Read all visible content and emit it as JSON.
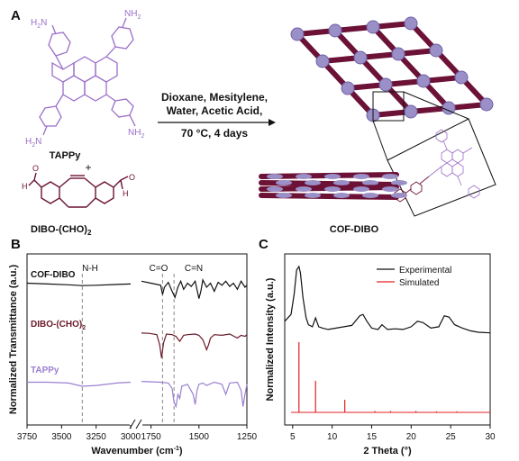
{
  "panel_a": {
    "letter": "A",
    "tappy_label": "TAPPy",
    "dibo_label_main": "DIBO-(CHO)",
    "dibo_label_sub": "2",
    "plus": "+",
    "amine_label": "H",
    "amine_sub": "2",
    "amine_n": "N",
    "amine_right": "NH",
    "aldehyde_h": "H",
    "aldehyde_o": "O",
    "conditions_line1": "Dioxane, Mesitylene,",
    "conditions_line2": "Water, Acetic Acid,",
    "conditions_line3": "70 °C, 4 days",
    "product_label": "COF-DIBO",
    "colors": {
      "purple": "#9b6fc9",
      "maroon": "#6b1236",
      "lavender": "#9b8fc8"
    }
  },
  "panel_b": {
    "letter": "B",
    "ylabel": "Normalized Transmittance (a.u.)",
    "xlabel": "Wavenumber (cm",
    "xlabel_sup": "-1",
    "xlabel_end": ")",
    "ticks_left": [
      "3750",
      "3500",
      "3250",
      "3000"
    ],
    "ticks_right": [
      "1750",
      "1500",
      "1250"
    ],
    "annotations": [
      "N-H",
      "C=O",
      "C=N"
    ],
    "series_labels": [
      {
        "name": "COF-DIBO",
        "color": "#111111"
      },
      {
        "name": "DIBO-(CHO)",
        "sub": "2",
        "color": "#6b1a2a"
      },
      {
        "name": "TAPPy",
        "color": "#9b7fd0"
      }
    ]
  },
  "panel_c": {
    "letter": "C",
    "ylabel": "Normalized Intensity (a.u.)",
    "xlabel": "2 Theta (°)",
    "ticks": [
      "5",
      "10",
      "15",
      "20",
      "25",
      "30"
    ],
    "legend": [
      {
        "name": "Experimental",
        "color": "#111111"
      },
      {
        "name": "Simulated",
        "color": "#e02020"
      }
    ]
  },
  "chart_data": [
    {
      "type": "line",
      "panel": "B",
      "xlabel": "Wavenumber (cm-1)",
      "ylabel": "Normalized Transmittance (a.u.)",
      "x_break": [
        3000,
        1800
      ],
      "xlim": [
        3750,
        1250
      ],
      "series": [
        {
          "name": "COF-DIBO",
          "x": [
            3750,
            3600,
            3450,
            3350,
            3250,
            3100,
            3000,
            1800,
            1750,
            1700,
            1690,
            1680,
            1660,
            1640,
            1625,
            1610,
            1595,
            1580,
            1560,
            1540,
            1520,
            1500,
            1490,
            1480,
            1460,
            1440,
            1420,
            1400,
            1380,
            1360,
            1340,
            1320,
            1300,
            1280,
            1260,
            1250
          ],
          "y": [
            0.9,
            0.88,
            0.86,
            0.84,
            0.85,
            0.87,
            0.88,
            0.95,
            0.9,
            0.85,
            0.62,
            0.8,
            0.92,
            0.7,
            0.55,
            0.8,
            0.95,
            0.75,
            0.9,
            0.82,
            0.95,
            0.52,
            0.7,
            0.98,
            0.8,
            0.9,
            0.7,
            0.92,
            0.85,
            0.95,
            0.82,
            0.9,
            0.75,
            0.95,
            0.8,
            0.85
          ]
        },
        {
          "name": "DIBO-(CHO)2",
          "x": [
            3000,
            1800,
            1760,
            1720,
            1705,
            1695,
            1685,
            1670,
            1640,
            1620,
            1600,
            1580,
            1560,
            1520,
            1500,
            1480,
            1470,
            1460,
            1450,
            1440,
            1420,
            1380,
            1340,
            1300,
            1280,
            1260,
            1250
          ],
          "y": [
            0.95,
            0.95,
            0.94,
            0.9,
            0.6,
            0.2,
            0.65,
            0.92,
            0.9,
            0.85,
            0.7,
            0.88,
            0.9,
            0.92,
            0.88,
            0.75,
            0.6,
            0.45,
            0.6,
            0.8,
            0.9,
            0.88,
            0.92,
            0.8,
            0.88,
            0.85,
            0.9
          ]
        },
        {
          "name": "TAPPy",
          "x": [
            3750,
            3600,
            3450,
            3350,
            3250,
            3100,
            3000,
            1800,
            1700,
            1660,
            1640,
            1630,
            1620,
            1610,
            1600,
            1590,
            1560,
            1530,
            1520,
            1510,
            1500,
            1480,
            1460,
            1420,
            1380,
            1360,
            1340,
            1300,
            1280,
            1270,
            1260,
            1250
          ],
          "y": [
            0.9,
            0.9,
            0.88,
            0.8,
            0.82,
            0.88,
            0.9,
            0.92,
            0.9,
            0.88,
            0.75,
            0.4,
            0.3,
            0.6,
            0.5,
            0.8,
            0.85,
            0.6,
            0.35,
            0.7,
            0.85,
            0.88,
            0.82,
            0.9,
            0.85,
            0.6,
            0.88,
            0.9,
            0.7,
            0.3,
            0.6,
            0.85
          ]
        }
      ],
      "dashed_lines_x": [
        3350,
        1690,
        1630
      ]
    },
    {
      "type": "line",
      "panel": "C",
      "xlabel": "2 Theta (°)",
      "ylabel": "Normalized Intensity (a.u.)",
      "xlim": [
        4,
        30
      ],
      "series": [
        {
          "name": "Experimental",
          "x": [
            4,
            4.8,
            5.2,
            5.5,
            5.8,
            6.0,
            6.3,
            6.7,
            7.0,
            7.5,
            7.9,
            8.3,
            8.8,
            9.5,
            10.5,
            11.5,
            12.5,
            13.5,
            13.9,
            14.4,
            15,
            15.8,
            16.3,
            17,
            18,
            19,
            20,
            20.8,
            21.5,
            22.5,
            23.5,
            24.2,
            24.8,
            25.5,
            26.5,
            27.5,
            28.5,
            30
          ],
          "y": [
            0.2,
            0.3,
            0.6,
            0.95,
            1.0,
            0.9,
            0.55,
            0.25,
            0.15,
            0.12,
            0.25,
            0.12,
            0.1,
            0.08,
            0.1,
            0.12,
            0.14,
            0.28,
            0.3,
            0.2,
            0.1,
            0.08,
            0.15,
            0.08,
            0.09,
            0.08,
            0.12,
            0.2,
            0.18,
            0.1,
            0.12,
            0.28,
            0.26,
            0.15,
            0.1,
            0.06,
            0.04,
            0.03
          ]
        },
        {
          "name": "Simulated",
          "peaks": [
            [
              5.8,
              1.0
            ],
            [
              7.9,
              0.45
            ],
            [
              11.6,
              0.18
            ],
            [
              15.4,
              0.02
            ],
            [
              17.4,
              0.02
            ],
            [
              20.6,
              0.02
            ],
            [
              23.2,
              0.015
            ],
            [
              25.8,
              0.015
            ]
          ]
        }
      ]
    }
  ]
}
